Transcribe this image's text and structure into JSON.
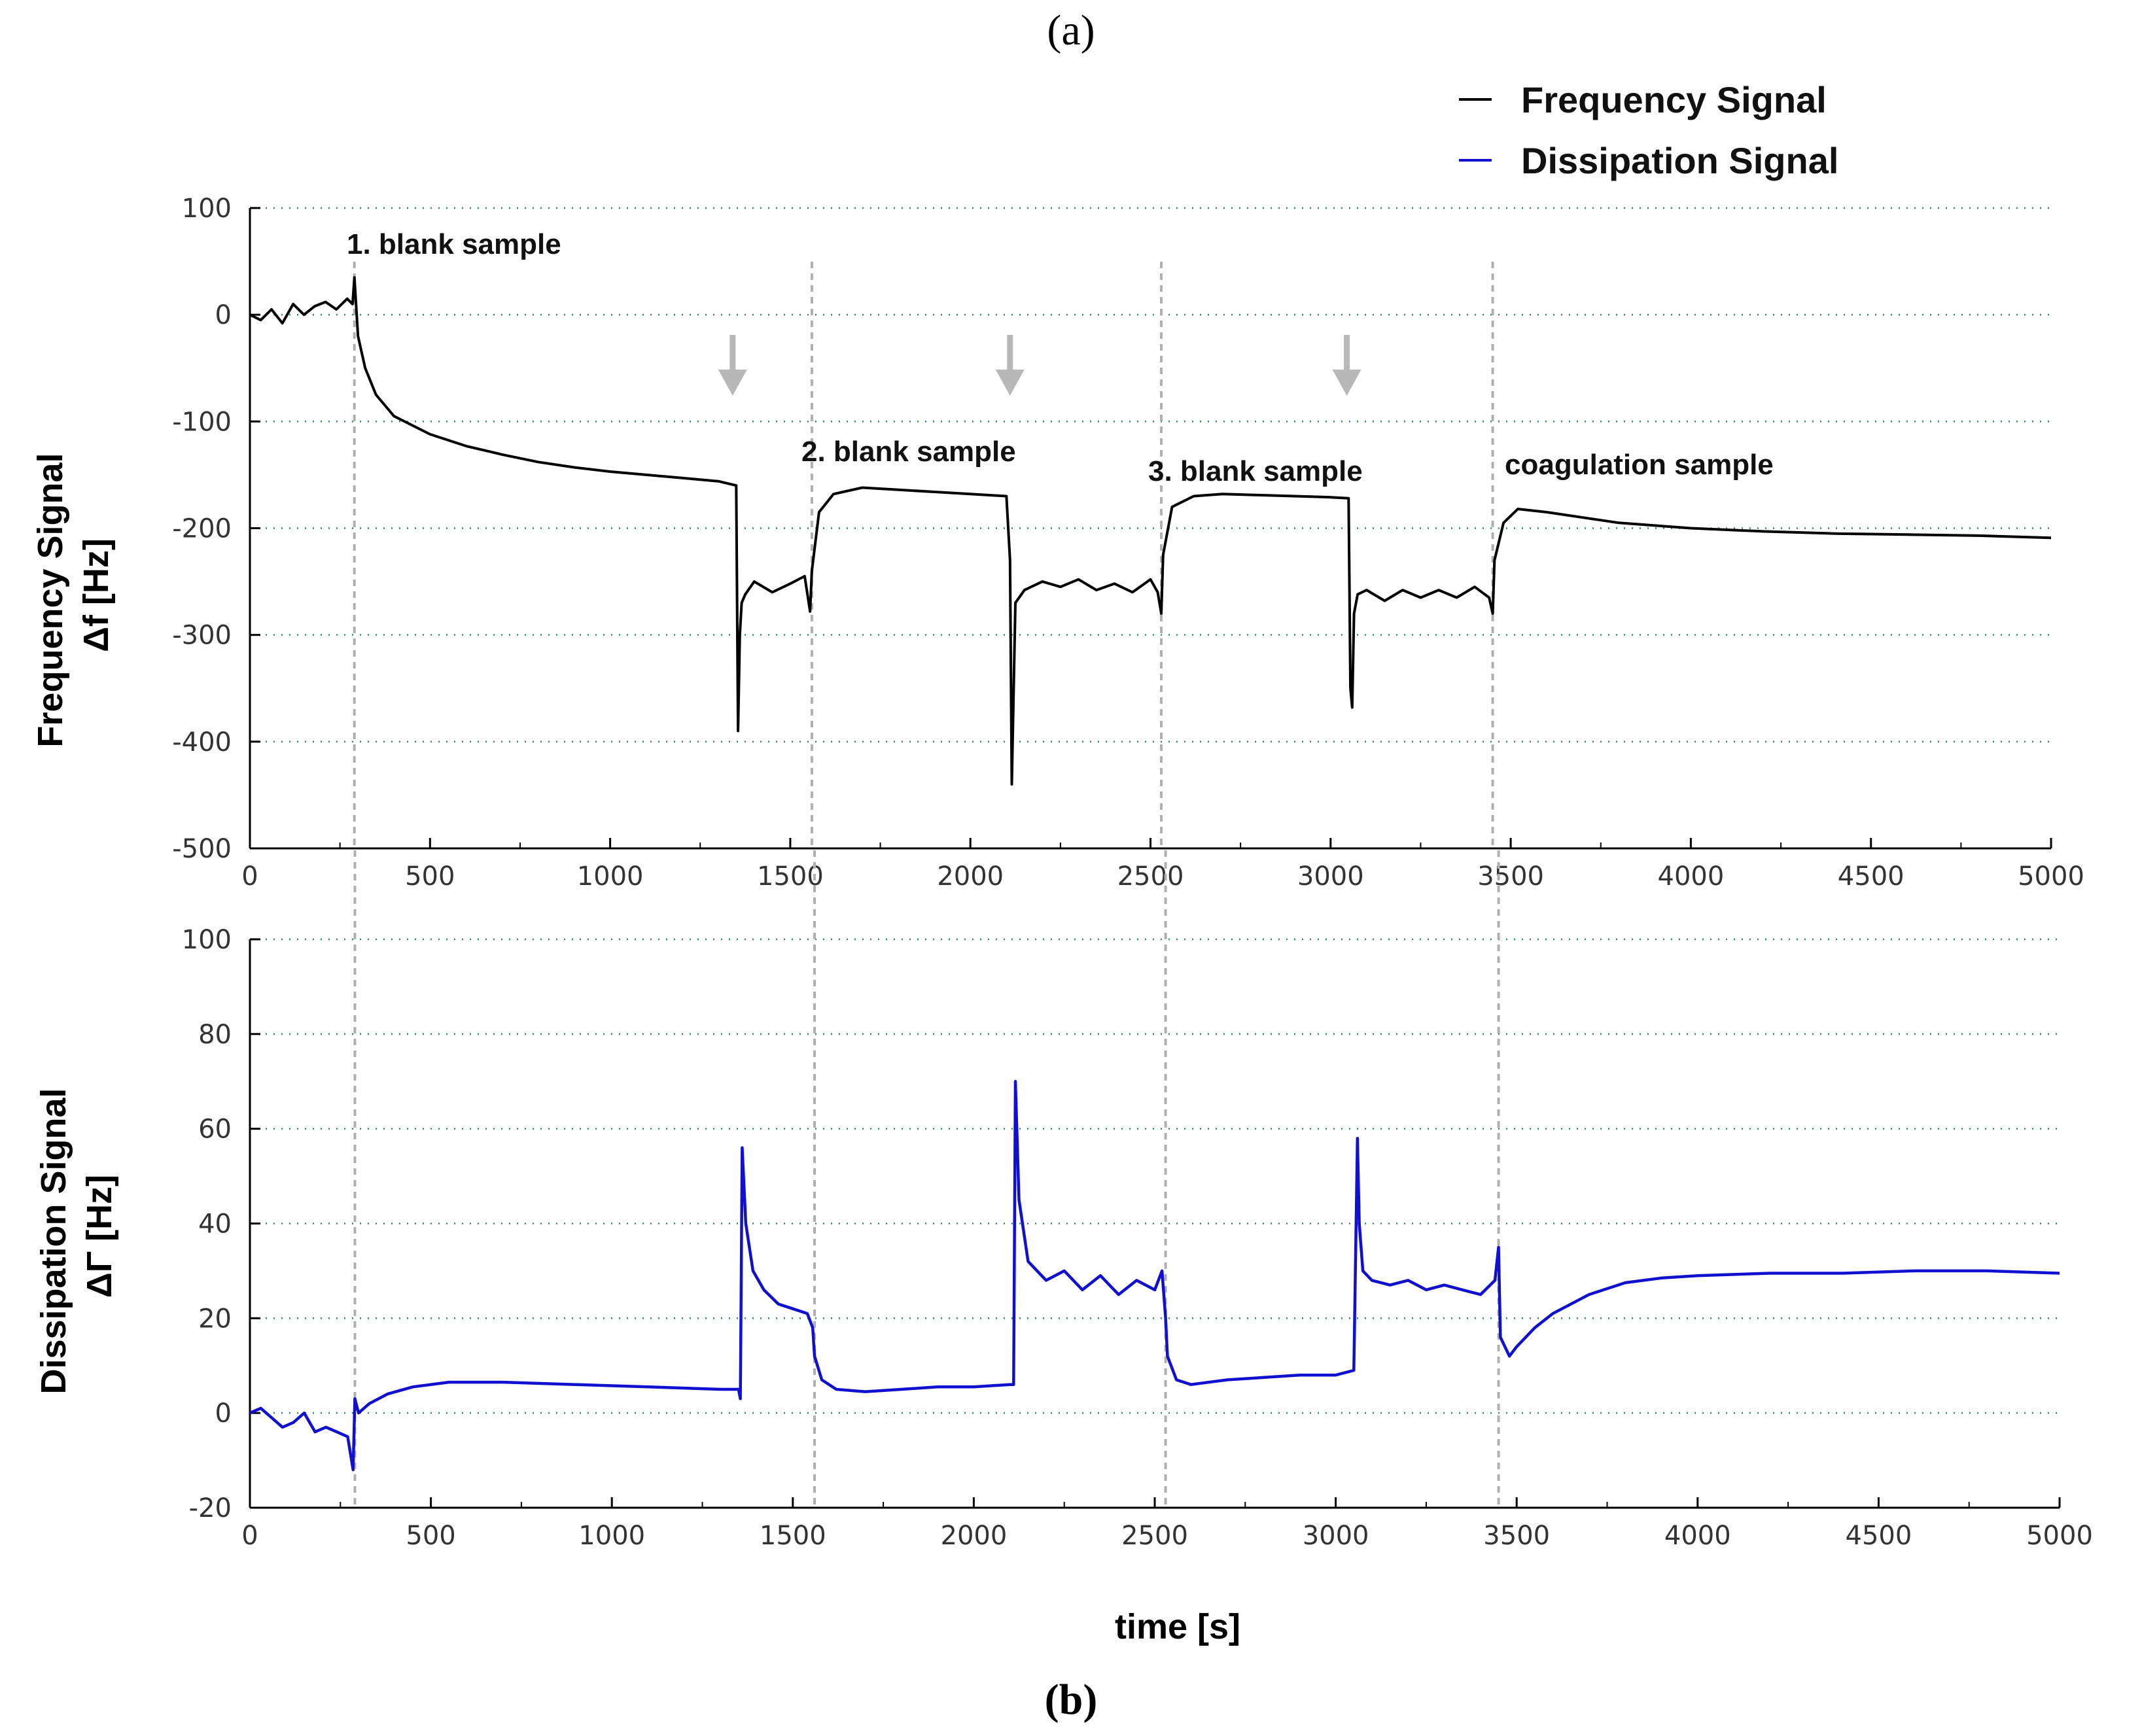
{
  "panel_labels": {
    "a": "a",
    "b": "b"
  },
  "colors": {
    "frequency": "#000000",
    "dissipation": "#1010d0",
    "grid": "#2e8b57",
    "event_line": "#b0b0b0",
    "arrow": "#b8b8b8",
    "axis": "#000000"
  },
  "icons": {
    "event_arrow": "down-arrow-icon"
  },
  "chart_data": [
    {
      "type": "line",
      "title": "",
      "xlabel": "",
      "ylabel": [
        "Frequency Signal",
        "Δf [Hz]"
      ],
      "xlim": [
        0,
        5000
      ],
      "ylim": [
        -500,
        100
      ],
      "xticks": [
        "0",
        "500",
        "1000",
        "1500",
        "2000",
        "2500",
        "3000",
        "3500",
        "4000",
        "4500",
        "5000"
      ],
      "yticks": [
        "100",
        "0",
        "-100",
        "-200",
        "-300",
        "-400",
        "-500"
      ],
      "grid": "horizontal dotted",
      "legend": {
        "placement": "top-right",
        "entries": [
          "Frequency Signal",
          "Dissipation Signal"
        ]
      },
      "series": [
        {
          "name": "Frequency Signal",
          "x": [
            0,
            30,
            60,
            90,
            120,
            150,
            180,
            210,
            240,
            270,
            285,
            290,
            300,
            320,
            350,
            400,
            500,
            600,
            700,
            800,
            900,
            1000,
            1100,
            1200,
            1300,
            1350,
            1355,
            1360,
            1365,
            1375,
            1400,
            1450,
            1500,
            1540,
            1555,
            1560,
            1580,
            1620,
            1700,
            1800,
            1900,
            2000,
            2100,
            2110,
            2115,
            2125,
            2150,
            2200,
            2250,
            2300,
            2350,
            2400,
            2450,
            2500,
            2520,
            2530,
            2535,
            2560,
            2620,
            2700,
            2800,
            2900,
            3000,
            3050,
            3055,
            3060,
            3065,
            3075,
            3100,
            3150,
            3200,
            3250,
            3300,
            3350,
            3400,
            3440,
            3450,
            3455,
            3480,
            3520,
            3600,
            3800,
            4000,
            4200,
            4400,
            4600,
            4800,
            5000
          ],
          "y": [
            0,
            -5,
            5,
            -8,
            10,
            0,
            8,
            12,
            5,
            15,
            10,
            35,
            -20,
            -50,
            -75,
            -95,
            -112,
            -123,
            -131,
            -138,
            -143,
            -147,
            -150,
            -153,
            -156,
            -160,
            -390,
            -300,
            -270,
            -262,
            -250,
            -260,
            -252,
            -245,
            -278,
            -240,
            -185,
            -168,
            -162,
            -164,
            -166,
            -168,
            -170,
            -230,
            -440,
            -270,
            -258,
            -250,
            -255,
            -248,
            -258,
            -252,
            -260,
            -248,
            -260,
            -280,
            -225,
            -180,
            -170,
            -168,
            -169,
            -170,
            -171,
            -172,
            -350,
            -368,
            -280,
            -262,
            -258,
            -268,
            -258,
            -265,
            -258,
            -265,
            -255,
            -265,
            -280,
            -230,
            -195,
            -182,
            -185,
            -195,
            -200,
            -203,
            -205,
            -206,
            -207,
            -209
          ]
        }
      ],
      "annotations": [
        "1. blank sample",
        "2. blank sample",
        "3. blank sample",
        "coagulation sample"
      ],
      "arrows_x": [
        1340,
        2110,
        3045
      ],
      "event_lines_x": [
        290,
        1560,
        2530,
        3450
      ]
    },
    {
      "type": "line",
      "title": "",
      "xlabel": "time [s]",
      "ylabel": [
        "Dissipation Signal",
        "ΔΓ [Hz]"
      ],
      "xlim": [
        0,
        5000
      ],
      "ylim": [
        -20,
        100
      ],
      "xticks": [
        "0",
        "500",
        "1000",
        "1500",
        "2000",
        "2500",
        "3000",
        "3500",
        "4000",
        "4500",
        "5000"
      ],
      "yticks": [
        "100",
        "80",
        "60",
        "40",
        "20",
        "0",
        "-20"
      ],
      "grid": "horizontal dotted",
      "series": [
        {
          "name": "Dissipation Signal",
          "x": [
            0,
            30,
            60,
            90,
            120,
            150,
            180,
            210,
            240,
            270,
            285,
            290,
            300,
            330,
            380,
            450,
            550,
            700,
            900,
            1100,
            1300,
            1350,
            1355,
            1360,
            1370,
            1390,
            1420,
            1460,
            1500,
            1540,
            1555,
            1560,
            1580,
            1620,
            1700,
            1800,
            1900,
            2000,
            2100,
            2110,
            2115,
            2125,
            2150,
            2200,
            2250,
            2300,
            2350,
            2400,
            2450,
            2500,
            2520,
            2530,
            2535,
            2560,
            2600,
            2700,
            2800,
            2900,
            3000,
            3050,
            3060,
            3065,
            3075,
            3100,
            3150,
            3200,
            3250,
            3300,
            3350,
            3400,
            3440,
            3450,
            3455,
            3480,
            3500,
            3550,
            3600,
            3700,
            3800,
            3900,
            4000,
            4200,
            4400,
            4600,
            4800,
            5000
          ],
          "y": [
            0,
            1,
            -1,
            -3,
            -2,
            0,
            -4,
            -3,
            -4,
            -5,
            -12,
            3,
            0,
            2,
            4,
            5.5,
            6.5,
            6.5,
            6,
            5.5,
            5,
            5,
            3,
            56,
            40,
            30,
            26,
            23,
            22,
            21,
            18,
            12,
            7,
            5,
            4.5,
            5,
            5.5,
            5.5,
            6,
            6,
            70,
            45,
            32,
            28,
            30,
            26,
            29,
            25,
            28,
            26,
            30,
            20,
            12,
            7,
            6,
            7,
            7.5,
            8,
            8,
            9,
            58,
            40,
            30,
            28,
            27,
            28,
            26,
            27,
            26,
            25,
            28,
            35,
            16,
            12,
            14,
            18,
            21,
            25,
            27.5,
            28.5,
            29,
            29.5,
            29.5,
            30,
            30,
            29.5
          ]
        }
      ],
      "event_lines_x": [
        290,
        1560,
        2530,
        3450
      ]
    }
  ]
}
